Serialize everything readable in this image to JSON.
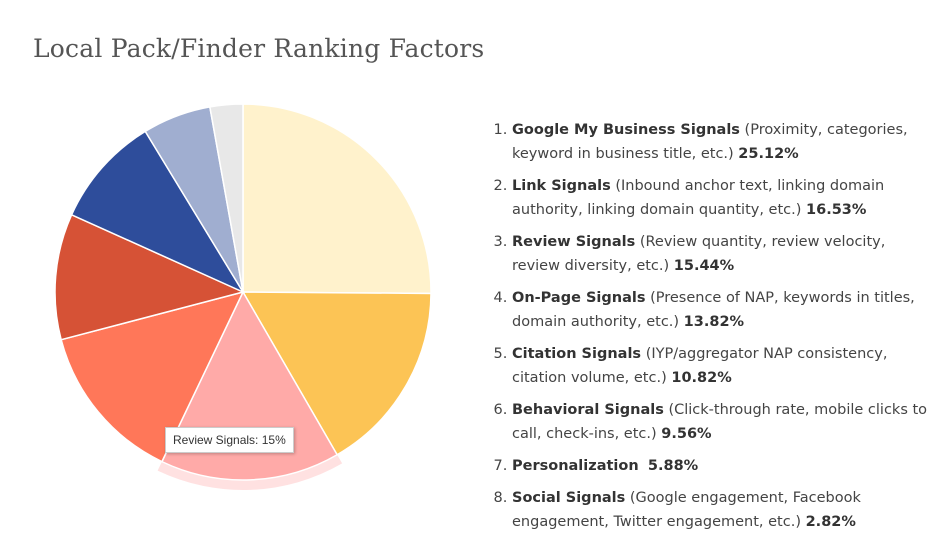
{
  "chart_data": {
    "type": "pie",
    "title": "Local Pack/Finder Ranking Factors",
    "categories": [
      "Google My Business Signals",
      "Link Signals",
      "Review Signals",
      "On-Page Signals",
      "Citation Signals",
      "Behavioral Signals",
      "Personalization",
      "Social Signals"
    ],
    "descriptions": [
      "(Proximity, categories, keyword in business title, etc.)",
      "(Inbound anchor text, linking domain authority, linking domain quantity, etc.)",
      "(Review quantity, review velocity, review diversity, etc.)",
      "(Presence of NAP, keywords in titles, domain authority, etc.)",
      "(IYP/aggregator NAP consistency, citation volume, etc.)",
      "(Click-through rate, mobile clicks to call, check-ins, etc.)",
      null,
      "(Google engagement, Facebook engagement, Twitter engagement, etc.)"
    ],
    "values": [
      25.12,
      16.53,
      15.44,
      13.82,
      10.82,
      9.56,
      5.88,
      2.82
    ],
    "value_labels": [
      "25.12%",
      "16.53%",
      "15.44%",
      "13.82%",
      "10.82%",
      "9.56%",
      "5.88%",
      "2.82%"
    ],
    "colors": [
      "#fff2cc",
      "#fcc455",
      "#ffaaa8",
      "#ff7759",
      "#d65236",
      "#2e4d9b",
      "#a0aed0",
      "#e8e8e8"
    ],
    "tooltip": {
      "name": "Review Signals",
      "value_label": "15%"
    }
  }
}
